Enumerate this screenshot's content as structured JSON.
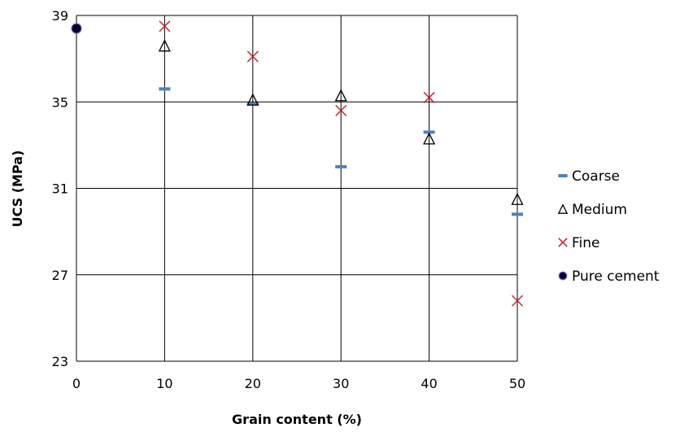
{
  "chart_data": {
    "type": "scatter",
    "xlabel": "Grain content (%)",
    "ylabel": "UCS (MPa)",
    "xlim": [
      0,
      50
    ],
    "ylim": [
      23,
      39
    ],
    "xticks": [
      0,
      10,
      20,
      30,
      40,
      50
    ],
    "yticks": [
      23,
      27,
      31,
      35,
      39
    ],
    "grid": "on",
    "legend_position": "right",
    "series": [
      {
        "name": "Coarse",
        "marker": "dash",
        "color": "#4f81bd",
        "points": [
          [
            10,
            35.6
          ],
          [
            20,
            34.9
          ],
          [
            30,
            32.0
          ],
          [
            40,
            33.6
          ],
          [
            50,
            29.8
          ]
        ]
      },
      {
        "name": "Medium",
        "marker": "triangle",
        "color": "#000000",
        "points": [
          [
            10,
            37.6
          ],
          [
            20,
            35.1
          ],
          [
            30,
            35.3
          ],
          [
            40,
            33.3
          ],
          [
            50,
            30.5
          ]
        ]
      },
      {
        "name": "Fine",
        "marker": "x",
        "color": "#c0272d",
        "points": [
          [
            10,
            38.5
          ],
          [
            20,
            37.1
          ],
          [
            30,
            34.6
          ],
          [
            40,
            35.2
          ],
          [
            50,
            25.8
          ]
        ]
      },
      {
        "name": "Pure cement",
        "marker": "circle",
        "color": "#000033",
        "points": [
          [
            0,
            38.4
          ]
        ]
      }
    ]
  }
}
